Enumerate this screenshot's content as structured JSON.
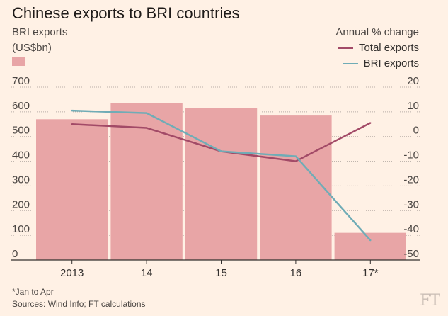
{
  "chart_data": {
    "type": "bar",
    "title": "Chinese exports to BRI countries",
    "left_axis_label_1": "BRI exports",
    "left_axis_label_2": "(US$bn)",
    "right_axis_label": "Annual % change",
    "categories": [
      "2013",
      "14",
      "15",
      "16",
      "17*"
    ],
    "bar_series": {
      "name": "BRI exports (US$bn)",
      "values": [
        570,
        635,
        615,
        585,
        110
      ],
      "color": "#e8a5a6"
    },
    "line_series": [
      {
        "name": "Total exports",
        "values": [
          5,
          3.5,
          -6,
          -10,
          5.5
        ],
        "color": "#a24a67"
      },
      {
        "name": "BRI exports",
        "values": [
          10.5,
          9.5,
          -6,
          -8,
          -42
        ],
        "color": "#70acb6"
      }
    ],
    "left_ticks": [
      "700",
      "600",
      "500",
      "400",
      "300",
      "200",
      "100",
      "0"
    ],
    "right_ticks": [
      "20",
      "10",
      "0",
      "-10",
      "-20",
      "-30",
      "-40",
      "-50"
    ],
    "left_ylim": [
      0,
      700
    ],
    "right_ylim": [
      -50,
      20
    ],
    "legend_position": "top-right",
    "footnote": "*Jan to Apr",
    "source": "Sources: Wind Info; FT calculations",
    "logo": "FT"
  }
}
